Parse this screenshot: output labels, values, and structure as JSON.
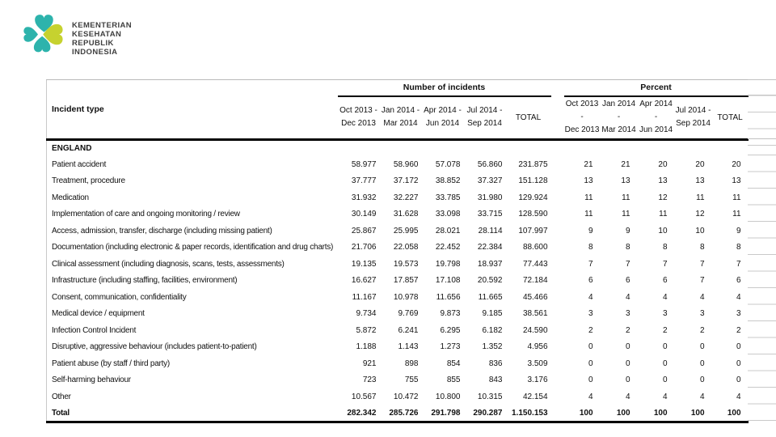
{
  "logo": {
    "lines": [
      "KEMENTERIAN",
      "KESEHATAN",
      "REPUBLIK",
      "INDONESIA"
    ],
    "colors": {
      "teal": "#2db3ac",
      "lime": "#c6d22f",
      "text": "#3f3f3f"
    }
  },
  "table": {
    "incident_type_header": "Incident type",
    "group_headers": [
      "Number of incidents",
      "Percent"
    ],
    "periods": [
      [
        "Oct 2013 -",
        "Dec 2013"
      ],
      [
        "Jan 2014 -",
        "Mar 2014"
      ],
      [
        "Apr 2014 -",
        "Jun 2014"
      ],
      [
        "Jul 2014 -",
        "Sep 2014"
      ]
    ],
    "total_header": "TOTAL",
    "section_label": "ENGLAND",
    "rows": [
      {
        "label": "Patient accident",
        "incidents": [
          "58.977",
          "58.960",
          "57.078",
          "56.860",
          "231.875"
        ],
        "percent": [
          "21",
          "21",
          "20",
          "20",
          "20"
        ]
      },
      {
        "label": "Treatment, procedure",
        "incidents": [
          "37.777",
          "37.172",
          "38.852",
          "37.327",
          "151.128"
        ],
        "percent": [
          "13",
          "13",
          "13",
          "13",
          "13"
        ]
      },
      {
        "label": "Medication",
        "incidents": [
          "31.932",
          "32.227",
          "33.785",
          "31.980",
          "129.924"
        ],
        "percent": [
          "11",
          "11",
          "12",
          "11",
          "11"
        ]
      },
      {
        "label": "Implementation of care and ongoing monitoring / review",
        "incidents": [
          "30.149",
          "31.628",
          "33.098",
          "33.715",
          "128.590"
        ],
        "percent": [
          "11",
          "11",
          "11",
          "12",
          "11"
        ]
      },
      {
        "label": "Access, admission, transfer, discharge (including missing patient)",
        "incidents": [
          "25.867",
          "25.995",
          "28.021",
          "28.114",
          "107.997"
        ],
        "percent": [
          "9",
          "9",
          "10",
          "10",
          "9"
        ]
      },
      {
        "label": "Documentation (including electronic & paper records, identification and drug charts)",
        "incidents": [
          "21.706",
          "22.058",
          "22.452",
          "22.384",
          "88.600"
        ],
        "percent": [
          "8",
          "8",
          "8",
          "8",
          "8"
        ]
      },
      {
        "label": "Clinical assessment (including diagnosis, scans, tests, assessments)",
        "incidents": [
          "19.135",
          "19.573",
          "19.798",
          "18.937",
          "77.443"
        ],
        "percent": [
          "7",
          "7",
          "7",
          "7",
          "7"
        ]
      },
      {
        "label": "Infrastructure (including staffing, facilities, environment)",
        "incidents": [
          "16.627",
          "17.857",
          "17.108",
          "20.592",
          "72.184"
        ],
        "percent": [
          "6",
          "6",
          "6",
          "7",
          "6"
        ]
      },
      {
        "label": "Consent, communication, confidentiality",
        "incidents": [
          "11.167",
          "10.978",
          "11.656",
          "11.665",
          "45.466"
        ],
        "percent": [
          "4",
          "4",
          "4",
          "4",
          "4"
        ]
      },
      {
        "label": "Medical device / equipment",
        "incidents": [
          "9.734",
          "9.769",
          "9.873",
          "9.185",
          "38.561"
        ],
        "percent": [
          "3",
          "3",
          "3",
          "3",
          "3"
        ]
      },
      {
        "label": "Infection Control Incident",
        "incidents": [
          "5.872",
          "6.241",
          "6.295",
          "6.182",
          "24.590"
        ],
        "percent": [
          "2",
          "2",
          "2",
          "2",
          "2"
        ]
      },
      {
        "label": "Disruptive, aggressive behaviour (includes patient-to-patient)",
        "incidents": [
          "1.188",
          "1.143",
          "1.273",
          "1.352",
          "4.956"
        ],
        "percent": [
          "0",
          "0",
          "0",
          "0",
          "0"
        ]
      },
      {
        "label": "Patient abuse (by staff / third party)",
        "incidents": [
          "921",
          "898",
          "854",
          "836",
          "3.509"
        ],
        "percent": [
          "0",
          "0",
          "0",
          "0",
          "0"
        ]
      },
      {
        "label": "Self-harming behaviour",
        "incidents": [
          "723",
          "755",
          "855",
          "843",
          "3.176"
        ],
        "percent": [
          "0",
          "0",
          "0",
          "0",
          "0"
        ]
      },
      {
        "label": "Other",
        "incidents": [
          "10.567",
          "10.472",
          "10.800",
          "10.315",
          "42.154"
        ],
        "percent": [
          "4",
          "4",
          "4",
          "4",
          "4"
        ]
      }
    ],
    "total_row": {
      "label": "Total",
      "incidents": [
        "282.342",
        "285.726",
        "291.798",
        "290.287",
        "1.150.153"
      ],
      "percent": [
        "100",
        "100",
        "100",
        "100",
        "100"
      ]
    }
  }
}
